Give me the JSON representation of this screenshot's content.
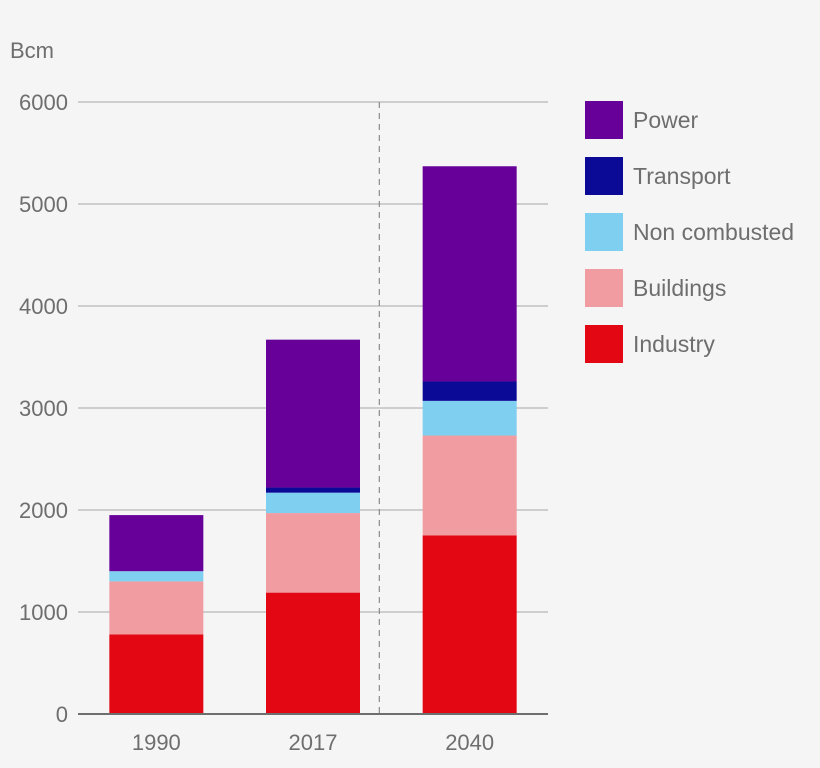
{
  "chart_data": {
    "type": "bar",
    "stacked": true,
    "unit_label": "Bcm",
    "categories": [
      "1990",
      "2017",
      "2040"
    ],
    "series": [
      {
        "name": "Industry",
        "color": "#e30613",
        "values": [
          780,
          1190,
          1750
        ]
      },
      {
        "name": "Buildings",
        "color": "#f19ca0",
        "values": [
          520,
          780,
          980
        ]
      },
      {
        "name": "Non combusted",
        "color": "#7ecff0",
        "values": [
          100,
          200,
          340
        ]
      },
      {
        "name": "Transport",
        "color": "#0a0a96",
        "values": [
          0,
          50,
          190
        ]
      },
      {
        "name": "Power",
        "color": "#660099",
        "values": [
          550,
          1450,
          2110
        ]
      }
    ],
    "ylim": [
      0,
      6000
    ],
    "yticks": [
      "0",
      "1000",
      "2000",
      "3000",
      "4000",
      "5000",
      "6000"
    ],
    "grid": true,
    "legend_placement": "right",
    "legend_order": [
      "Power",
      "Transport",
      "Non combusted",
      "Buildings",
      "Industry"
    ],
    "divider_after_category": "2017"
  }
}
